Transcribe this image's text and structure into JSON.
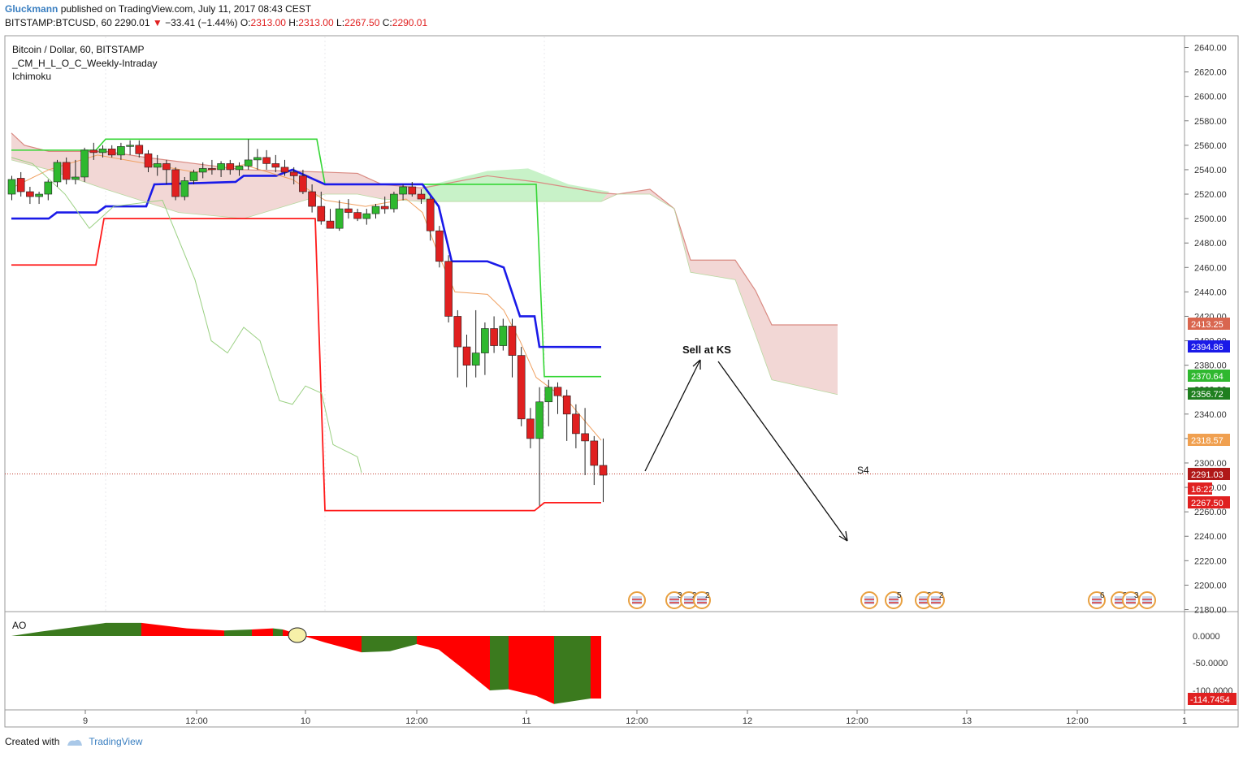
{
  "header": {
    "author": "Gluckmann",
    "published": "published on TradingView.com, July 11, 2017 08:43 CEST",
    "symbol": "BITSTAMP:BTCUSD, 60",
    "last": "2290.01",
    "change": "−33.41 (−1.44%)",
    "o_label": "O:",
    "o_val": "2313.00",
    "h_label": "H:",
    "h_val": "2313.00",
    "l_label": "L:",
    "l_val": "2267.50",
    "c_label": "C:",
    "c_val": "2290.01"
  },
  "legend": {
    "line1": "Bitcoin / Dollar, 60, BITSTAMP",
    "line2": "_CM_H_L_O_C_Weekly-Intraday",
    "line3": "Ichimoku"
  },
  "annotations": {
    "sell": "Sell at KS",
    "pivot": "S4"
  },
  "ao_label": "AO",
  "footer": {
    "made": "Created with",
    "brand": "TradingView"
  },
  "colors": {
    "up": "#2fb82f",
    "down": "#e02020",
    "kijun": "#1a1ae8",
    "ao_pos": "#3b7a1e",
    "ao_neg": "#ff0000",
    "cloud": "#f2d7d5",
    "cloud_green": "#c8f2c8"
  },
  "chart_data": {
    "type": "candlestick",
    "y_ticks": [
      2640,
      2620,
      2600,
      2580,
      2560,
      2540,
      2520,
      2500,
      2480,
      2460,
      2440,
      2420,
      2400,
      2380,
      2360,
      2340,
      2320,
      2300,
      2280,
      2260,
      2240,
      2220,
      2200,
      2180
    ],
    "x_ticks": [
      "9",
      "12:00",
      "10",
      "12:00",
      "11",
      "12:00",
      "12",
      "12:00",
      "13",
      "12:00",
      "1"
    ],
    "ohlc": [
      [
        2520,
        2535,
        2515,
        2532
      ],
      [
        2533,
        2538,
        2518,
        2522
      ],
      [
        2522,
        2526,
        2512,
        2518
      ],
      [
        2518,
        2522,
        2512,
        2520
      ],
      [
        2520,
        2532,
        2515,
        2530
      ],
      [
        2530,
        2548,
        2526,
        2546
      ],
      [
        2546,
        2550,
        2528,
        2532
      ],
      [
        2532,
        2548,
        2528,
        2534
      ],
      [
        2534,
        2558,
        2530,
        2556
      ],
      [
        2556,
        2562,
        2548,
        2554
      ],
      [
        2554,
        2560,
        2550,
        2557
      ],
      [
        2557,
        2560,
        2550,
        2552
      ],
      [
        2552,
        2562,
        2548,
        2559
      ],
      [
        2559,
        2564,
        2552,
        2560
      ],
      [
        2560,
        2564,
        2550,
        2553
      ],
      [
        2553,
        2556,
        2538,
        2542
      ],
      [
        2542,
        2552,
        2535,
        2545
      ],
      [
        2545,
        2548,
        2528,
        2540
      ],
      [
        2540,
        2542,
        2515,
        2518
      ],
      [
        2518,
        2534,
        2515,
        2531
      ],
      [
        2531,
        2540,
        2528,
        2538
      ],
      [
        2538,
        2546,
        2533,
        2541
      ],
      [
        2541,
        2548,
        2536,
        2540
      ],
      [
        2540,
        2547,
        2534,
        2545
      ],
      [
        2545,
        2548,
        2536,
        2540
      ],
      [
        2540,
        2546,
        2535,
        2543
      ],
      [
        2543,
        2565,
        2540,
        2548
      ],
      [
        2548,
        2557,
        2540,
        2550
      ],
      [
        2550,
        2556,
        2540,
        2545
      ],
      [
        2545,
        2552,
        2538,
        2542
      ],
      [
        2542,
        2548,
        2535,
        2538
      ],
      [
        2538,
        2542,
        2528,
        2535
      ],
      [
        2535,
        2540,
        2520,
        2522
      ],
      [
        2522,
        2528,
        2505,
        2510
      ],
      [
        2510,
        2522,
        2495,
        2498
      ],
      [
        2498,
        2508,
        2492,
        2492
      ],
      [
        2492,
        2515,
        2490,
        2508
      ],
      [
        2508,
        2516,
        2500,
        2505
      ],
      [
        2505,
        2508,
        2498,
        2500
      ],
      [
        2500,
        2508,
        2495,
        2504
      ],
      [
        2504,
        2512,
        2500,
        2510
      ],
      [
        2510,
        2518,
        2504,
        2508
      ],
      [
        2508,
        2522,
        2505,
        2520
      ],
      [
        2520,
        2528,
        2515,
        2526
      ],
      [
        2526,
        2530,
        2518,
        2520
      ],
      [
        2520,
        2524,
        2512,
        2516
      ],
      [
        2516,
        2518,
        2482,
        2490
      ],
      [
        2490,
        2494,
        2460,
        2465
      ],
      [
        2465,
        2470,
        2415,
        2420
      ],
      [
        2420,
        2425,
        2370,
        2395
      ],
      [
        2395,
        2405,
        2362,
        2380
      ],
      [
        2380,
        2425,
        2370,
        2390
      ],
      [
        2390,
        2415,
        2372,
        2410
      ],
      [
        2410,
        2420,
        2390,
        2396
      ],
      [
        2396,
        2418,
        2392,
        2412
      ],
      [
        2412,
        2418,
        2370,
        2388
      ],
      [
        2388,
        2395,
        2330,
        2336
      ],
      [
        2336,
        2345,
        2312,
        2320
      ],
      [
        2320,
        2362,
        2265,
        2350
      ],
      [
        2350,
        2368,
        2330,
        2362
      ],
      [
        2362,
        2366,
        2340,
        2355
      ],
      [
        2355,
        2360,
        2318,
        2340
      ],
      [
        2340,
        2348,
        2312,
        2324
      ],
      [
        2324,
        2345,
        2290,
        2318
      ],
      [
        2318,
        2322,
        2282,
        2298
      ],
      [
        2298,
        2320,
        2268,
        2290
      ]
    ],
    "series": [
      {
        "name": "Kijun",
        "values": []
      },
      {
        "name": "Tenkan",
        "values": []
      }
    ],
    "price_labels": [
      "2413.25",
      "2394.86",
      "2370.64",
      "2356.72",
      "2318.57",
      "2291.03",
      "16:22",
      "2267.50"
    ],
    "ao_labels": [
      "0.0000",
      "-50.0000",
      "-100.0000",
      "-114.7454"
    ],
    "events": [
      {
        "x": 784,
        "label": ""
      },
      {
        "x": 830,
        "label": "3"
      },
      {
        "x": 848,
        "label": "2"
      },
      {
        "x": 864,
        "label": "2"
      },
      {
        "x": 1070,
        "label": ""
      },
      {
        "x": 1100,
        "label": "5"
      },
      {
        "x": 1137,
        "label": "2"
      },
      {
        "x": 1152,
        "label": "2"
      },
      {
        "x": 1350,
        "label": "6"
      },
      {
        "x": 1378,
        "label": "3"
      },
      {
        "x": 1392,
        "label": "3"
      },
      {
        "x": 1412,
        "label": ""
      }
    ]
  }
}
